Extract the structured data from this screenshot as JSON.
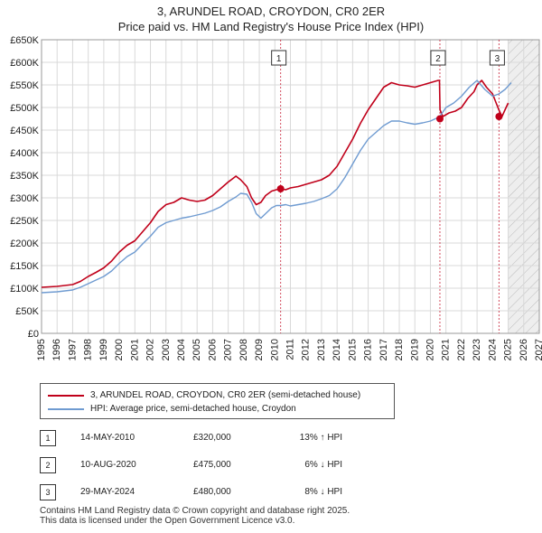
{
  "title_line1": "3, ARUNDEL ROAD, CROYDON, CR0 2ER",
  "title_line2": "Price paid vs. HM Land Registry's House Price Index (HPI)",
  "colors": {
    "property": "#c0001a",
    "hpi": "#6f9bd1",
    "grid": "#d9d9d9",
    "shade": "#dde6f2"
  },
  "chart_data": {
    "type": "line",
    "title": "3, ARUNDEL ROAD, CROYDON, CR0 2ER — Price paid vs. HM Land Registry's House Price Index (HPI)",
    "xlim": [
      1995,
      2027
    ],
    "ylim": [
      0,
      650000
    ],
    "x_ticks": [
      "1995",
      "1996",
      "1997",
      "1998",
      "1999",
      "2000",
      "2001",
      "2002",
      "2003",
      "2004",
      "2005",
      "2006",
      "2007",
      "2008",
      "2009",
      "2010",
      "2011",
      "2012",
      "2013",
      "2014",
      "2015",
      "2016",
      "2017",
      "2018",
      "2019",
      "2020",
      "2021",
      "2022",
      "2023",
      "2024",
      "2025",
      "2026",
      "2027"
    ],
    "y_ticks": [
      {
        "value": 0,
        "label": "£0"
      },
      {
        "value": 50000,
        "label": "£50K"
      },
      {
        "value": 100000,
        "label": "£100K"
      },
      {
        "value": 150000,
        "label": "£150K"
      },
      {
        "value": 200000,
        "label": "£200K"
      },
      {
        "value": 250000,
        "label": "£250K"
      },
      {
        "value": 300000,
        "label": "£300K"
      },
      {
        "value": 350000,
        "label": "£350K"
      },
      {
        "value": 400000,
        "label": "£400K"
      },
      {
        "value": 450000,
        "label": "£450K"
      },
      {
        "value": 500000,
        "label": "£500K"
      },
      {
        "value": 550000,
        "label": "£550K"
      },
      {
        "value": 600000,
        "label": "£600K"
      },
      {
        "value": 650000,
        "label": "£650K"
      }
    ],
    "future_start": 2025.0,
    "series": [
      {
        "name": "3, ARUNDEL ROAD, CROYDON, CR0 2ER (semi-detached house)",
        "x": [
          1995.0,
          1996.0,
          1997.0,
          1997.5,
          1998.0,
          1998.5,
          1999.0,
          1999.5,
          2000.0,
          2000.5,
          2001.0,
          2001.5,
          2002.0,
          2002.5,
          2003.0,
          2003.5,
          2004.0,
          2004.5,
          2005.0,
          2005.5,
          2006.0,
          2006.5,
          2007.0,
          2007.5,
          2007.8,
          2008.2,
          2008.5,
          2008.8,
          2009.1,
          2009.4,
          2009.8,
          2010.1,
          2010.37,
          2010.7,
          2011.0,
          2011.5,
          2012.0,
          2012.5,
          2013.0,
          2013.5,
          2014.0,
          2014.5,
          2015.0,
          2015.5,
          2016.0,
          2016.5,
          2017.0,
          2017.5,
          2018.0,
          2018.5,
          2019.0,
          2019.5,
          2020.0,
          2020.5,
          2020.58,
          2020.62,
          2020.8,
          2021.2,
          2021.6,
          2022.0,
          2022.4,
          2022.8,
          2023.0,
          2023.3,
          2023.6,
          2024.0,
          2024.4,
          2024.6,
          2024.8,
          2025.0
        ],
        "y": [
          102000,
          104000,
          108000,
          115000,
          126000,
          135000,
          145000,
          160000,
          180000,
          195000,
          205000,
          225000,
          245000,
          270000,
          285000,
          290000,
          300000,
          295000,
          292000,
          295000,
          305000,
          320000,
          335000,
          348000,
          340000,
          325000,
          300000,
          285000,
          290000,
          305000,
          315000,
          318000,
          320000,
          318000,
          322000,
          325000,
          330000,
          335000,
          340000,
          350000,
          370000,
          400000,
          430000,
          465000,
          495000,
          520000,
          545000,
          555000,
          550000,
          548000,
          545000,
          550000,
          555000,
          560000,
          560000,
          495000,
          480000,
          488000,
          492000,
          500000,
          520000,
          535000,
          550000,
          560000,
          545000,
          530000,
          495000,
          480000,
          495000,
          510000
        ],
        "color": "#c0001a"
      },
      {
        "name": "HPI: Average price, semi-detached house, Croydon",
        "x": [
          1995.0,
          1996.0,
          1997.0,
          1997.5,
          1998.0,
          1998.5,
          1999.0,
          1999.5,
          2000.0,
          2000.5,
          2001.0,
          2001.5,
          2002.0,
          2002.5,
          2003.0,
          2003.5,
          2004.0,
          2004.5,
          2005.0,
          2005.5,
          2006.0,
          2006.5,
          2007.0,
          2007.5,
          2007.8,
          2008.2,
          2008.5,
          2008.8,
          2009.1,
          2009.4,
          2009.8,
          2010.1,
          2010.37,
          2010.7,
          2011.0,
          2011.5,
          2012.0,
          2012.5,
          2013.0,
          2013.5,
          2014.0,
          2014.5,
          2015.0,
          2015.5,
          2016.0,
          2016.5,
          2017.0,
          2017.5,
          2018.0,
          2018.5,
          2019.0,
          2019.5,
          2020.0,
          2020.5,
          2020.6,
          2021.0,
          2021.5,
          2022.0,
          2022.5,
          2023.0,
          2023.5,
          2024.0,
          2024.4,
          2024.8,
          2025.2
        ],
        "y": [
          90000,
          92000,
          96000,
          102000,
          110000,
          118000,
          126000,
          138000,
          155000,
          170000,
          180000,
          198000,
          215000,
          235000,
          245000,
          250000,
          255000,
          258000,
          262000,
          266000,
          272000,
          280000,
          292000,
          302000,
          310000,
          308000,
          290000,
          265000,
          255000,
          265000,
          278000,
          283000,
          283000,
          285000,
          282000,
          285000,
          288000,
          292000,
          298000,
          305000,
          320000,
          345000,
          375000,
          405000,
          430000,
          445000,
          460000,
          470000,
          470000,
          466000,
          463000,
          466000,
          470000,
          478000,
          480000,
          500000,
          510000,
          525000,
          545000,
          560000,
          540000,
          525000,
          530000,
          540000,
          555000
        ],
        "color": "#6f9bd1"
      }
    ],
    "annotations": [
      {
        "label": "1",
        "x": 2010.37,
        "price": 320000
      },
      {
        "label": "2",
        "x": 2020.61,
        "price": 475000
      },
      {
        "label": "3",
        "x": 2024.41,
        "price": 480000
      }
    ]
  },
  "legend": {
    "property_label": "3, ARUNDEL ROAD, CROYDON, CR0 2ER (semi-detached house)",
    "hpi_label": "HPI: Average price, semi-detached house, Croydon"
  },
  "sales": [
    {
      "num": "1",
      "date": "14-MAY-2010",
      "price": "£320,000",
      "hpi": "13% ↑ HPI"
    },
    {
      "num": "2",
      "date": "10-AUG-2020",
      "price": "£475,000",
      "hpi": "6% ↓ HPI"
    },
    {
      "num": "3",
      "date": "29-MAY-2024",
      "price": "£480,000",
      "hpi": "8% ↓ HPI"
    }
  ],
  "footer": {
    "line1": "Contains HM Land Registry data © Crown copyright and database right 2025.",
    "line2": "This data is licensed under the Open Government Licence v3.0."
  }
}
